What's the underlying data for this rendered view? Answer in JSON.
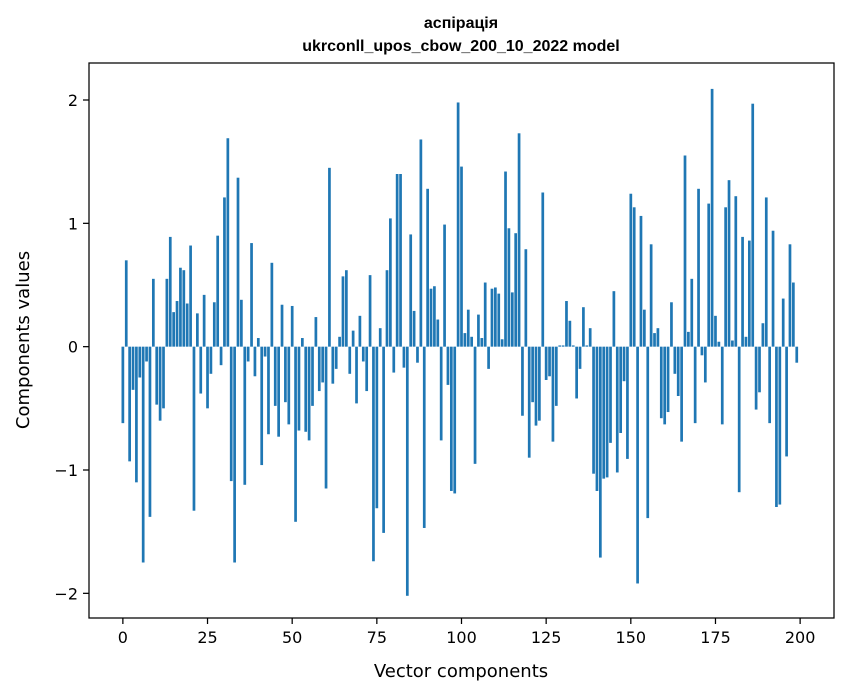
{
  "chart_data": {
    "type": "bar",
    "title_line1": "аспірація",
    "title_line2": "ukrconll_upos_cbow_200_10_2022 model",
    "xlabel": "Vector components",
    "ylabel": "Components values",
    "xlim": [
      -10,
      210
    ],
    "ylim": [
      -2.2,
      2.3
    ],
    "xticks": [
      0,
      25,
      50,
      75,
      100,
      125,
      150,
      175,
      200
    ],
    "xtick_labels": [
      "0",
      "25",
      "50",
      "75",
      "100",
      "125",
      "150",
      "175",
      "200"
    ],
    "yticks": [
      -2,
      -1,
      0,
      1,
      2
    ],
    "ytick_labels": [
      "−2",
      "−1",
      "0",
      "1",
      "2"
    ],
    "bar_color": "#1f77b4",
    "grid": false,
    "x": [
      0,
      1,
      2,
      3,
      4,
      5,
      6,
      7,
      8,
      9,
      10,
      11,
      12,
      13,
      14,
      15,
      16,
      17,
      18,
      19,
      20,
      21,
      22,
      23,
      24,
      25,
      26,
      27,
      28,
      29,
      30,
      31,
      32,
      33,
      34,
      35,
      36,
      37,
      38,
      39,
      40,
      41,
      42,
      43,
      44,
      45,
      46,
      47,
      48,
      49,
      50,
      51,
      52,
      53,
      54,
      55,
      56,
      57,
      58,
      59,
      60,
      61,
      62,
      63,
      64,
      65,
      66,
      67,
      68,
      69,
      70,
      71,
      72,
      73,
      74,
      75,
      76,
      77,
      78,
      79,
      80,
      81,
      82,
      83,
      84,
      85,
      86,
      87,
      88,
      89,
      90,
      91,
      92,
      93,
      94,
      95,
      96,
      97,
      98,
      99,
      100,
      101,
      102,
      103,
      104,
      105,
      106,
      107,
      108,
      109,
      110,
      111,
      112,
      113,
      114,
      115,
      116,
      117,
      118,
      119,
      120,
      121,
      122,
      123,
      124,
      125,
      126,
      127,
      128,
      129,
      130,
      131,
      132,
      133,
      134,
      135,
      136,
      137,
      138,
      139,
      140,
      141,
      142,
      143,
      144,
      145,
      146,
      147,
      148,
      149,
      150,
      151,
      152,
      153,
      154,
      155,
      156,
      157,
      158,
      159,
      160,
      161,
      162,
      163,
      164,
      165,
      166,
      167,
      168,
      169,
      170,
      171,
      172,
      173,
      174,
      175,
      176,
      177,
      178,
      179,
      180,
      181,
      182,
      183,
      184,
      185,
      186,
      187,
      188,
      189,
      190,
      191,
      192,
      193,
      194,
      195,
      196,
      197,
      198,
      199
    ],
    "values": [
      -0.62,
      0.7,
      -0.93,
      -0.35,
      -1.1,
      -0.25,
      -1.75,
      -0.12,
      -1.38,
      0.55,
      -0.47,
      -0.6,
      -0.5,
      0.55,
      0.89,
      0.28,
      0.37,
      0.64,
      0.62,
      0.35,
      0.82,
      -1.33,
      0.27,
      -0.38,
      0.42,
      -0.5,
      -0.22,
      0.36,
      0.9,
      -0.15,
      1.21,
      1.69,
      -1.09,
      -1.75,
      1.37,
      0.38,
      -1.12,
      -0.12,
      0.84,
      -0.24,
      0.07,
      -0.96,
      -0.08,
      -0.71,
      0.68,
      -0.48,
      -0.73,
      0.34,
      -0.45,
      -0.63,
      0.33,
      -1.42,
      -0.68,
      0.07,
      -0.69,
      -0.76,
      -0.48,
      0.24,
      -0.36,
      -0.29,
      -1.15,
      1.45,
      -0.3,
      -0.18,
      0.08,
      0.57,
      0.62,
      -0.22,
      0.13,
      -0.46,
      0.25,
      -0.12,
      -0.36,
      0.58,
      -1.74,
      -1.31,
      0.15,
      -1.51,
      0.62,
      1.04,
      -0.21,
      1.4,
      1.4,
      -0.17,
      -2.02,
      0.91,
      0.29,
      -0.13,
      1.68,
      -1.47,
      1.28,
      0.47,
      0.49,
      0.22,
      -0.76,
      0.99,
      -0.31,
      -1.17,
      -1.19,
      1.98,
      1.46,
      0.11,
      0.3,
      0.08,
      -0.95,
      0.26,
      0.07,
      0.52,
      -0.18,
      0.47,
      0.48,
      0.43,
      0.06,
      1.42,
      0.96,
      0.44,
      0.92,
      1.73,
      -0.56,
      0.79,
      -0.9,
      -0.45,
      -0.64,
      -0.6,
      1.25,
      -0.27,
      -0.24,
      -0.77,
      -0.48,
      0.01,
      0.01,
      0.37,
      0.21,
      0.01,
      -0.42,
      -0.18,
      0.32,
      0.01,
      0.15,
      -1.03,
      -1.17,
      -1.71,
      -1.07,
      -1.06,
      -0.78,
      0.45,
      -1.02,
      -0.7,
      -0.28,
      -0.91,
      1.24,
      1.13,
      -1.92,
      1.06,
      0.3,
      -1.39,
      0.83,
      0.11,
      0.15,
      -0.58,
      -0.63,
      -0.53,
      0.36,
      -0.22,
      -0.4,
      -0.77,
      1.55,
      0.12,
      0.55,
      -0.62,
      1.28,
      -0.07,
      -0.29,
      1.16,
      2.09,
      0.25,
      0.04,
      -0.63,
      1.13,
      1.35,
      0.05,
      1.22,
      -1.18,
      0.89,
      0.08,
      0.86,
      1.97,
      -0.51,
      -0.37,
      0.19,
      1.21,
      -0.62,
      0.94,
      -1.3,
      -1.28,
      0.39,
      -0.89,
      0.83,
      0.52,
      -0.13
    ]
  }
}
